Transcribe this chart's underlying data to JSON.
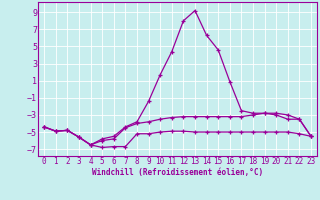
{
  "xlabel": "Windchill (Refroidissement éolien,°C)",
  "bg_color": "#c8eeee",
  "line_color": "#990099",
  "grid_color": "#aadddd",
  "border_color": "#990099",
  "xlim": [
    -0.5,
    23.5
  ],
  "ylim": [
    -7.8,
    10.2
  ],
  "yticks": [
    -7,
    -5,
    -3,
    -1,
    1,
    3,
    5,
    7,
    9
  ],
  "xticks": [
    0,
    1,
    2,
    3,
    4,
    5,
    6,
    7,
    8,
    9,
    10,
    11,
    12,
    13,
    14,
    15,
    16,
    17,
    18,
    19,
    20,
    21,
    22,
    23
  ],
  "line1_x": [
    0,
    1,
    2,
    3,
    4,
    5,
    6,
    7,
    8,
    9,
    10,
    11,
    12,
    13,
    14,
    15,
    16,
    17,
    18,
    19,
    20,
    21,
    22,
    23
  ],
  "line1_y": [
    -4.4,
    -4.9,
    -4.8,
    -5.6,
    -6.5,
    -6.8,
    -6.7,
    -6.7,
    -5.2,
    -5.2,
    -5.0,
    -4.9,
    -4.9,
    -5.0,
    -5.0,
    -5.0,
    -5.0,
    -5.0,
    -5.0,
    -5.0,
    -5.0,
    -5.0,
    -5.2,
    -5.5
  ],
  "line2_x": [
    0,
    1,
    2,
    3,
    4,
    5,
    6,
    7,
    8,
    9,
    10,
    11,
    12,
    13,
    14,
    15,
    16,
    17,
    18,
    19,
    20,
    21,
    22,
    23
  ],
  "line2_y": [
    -4.4,
    -4.9,
    -4.8,
    -5.6,
    -6.5,
    -5.8,
    -5.5,
    -4.4,
    -3.8,
    -1.4,
    1.7,
    4.4,
    8.0,
    9.2,
    6.3,
    4.6,
    0.9,
    -2.5,
    -2.8,
    -2.8,
    -3.0,
    -3.5,
    -3.5,
    -5.5
  ],
  "line3_x": [
    0,
    1,
    2,
    3,
    4,
    5,
    6,
    7,
    8,
    9,
    10,
    11,
    12,
    13,
    14,
    15,
    16,
    17,
    18,
    19,
    20,
    21,
    22,
    23
  ],
  "line3_y": [
    -4.4,
    -4.9,
    -4.8,
    -5.6,
    -6.5,
    -6.0,
    -5.8,
    -4.5,
    -4.0,
    -3.8,
    -3.5,
    -3.3,
    -3.2,
    -3.2,
    -3.2,
    -3.2,
    -3.2,
    -3.2,
    -3.0,
    -2.8,
    -2.8,
    -3.0,
    -3.5,
    -5.5
  ]
}
